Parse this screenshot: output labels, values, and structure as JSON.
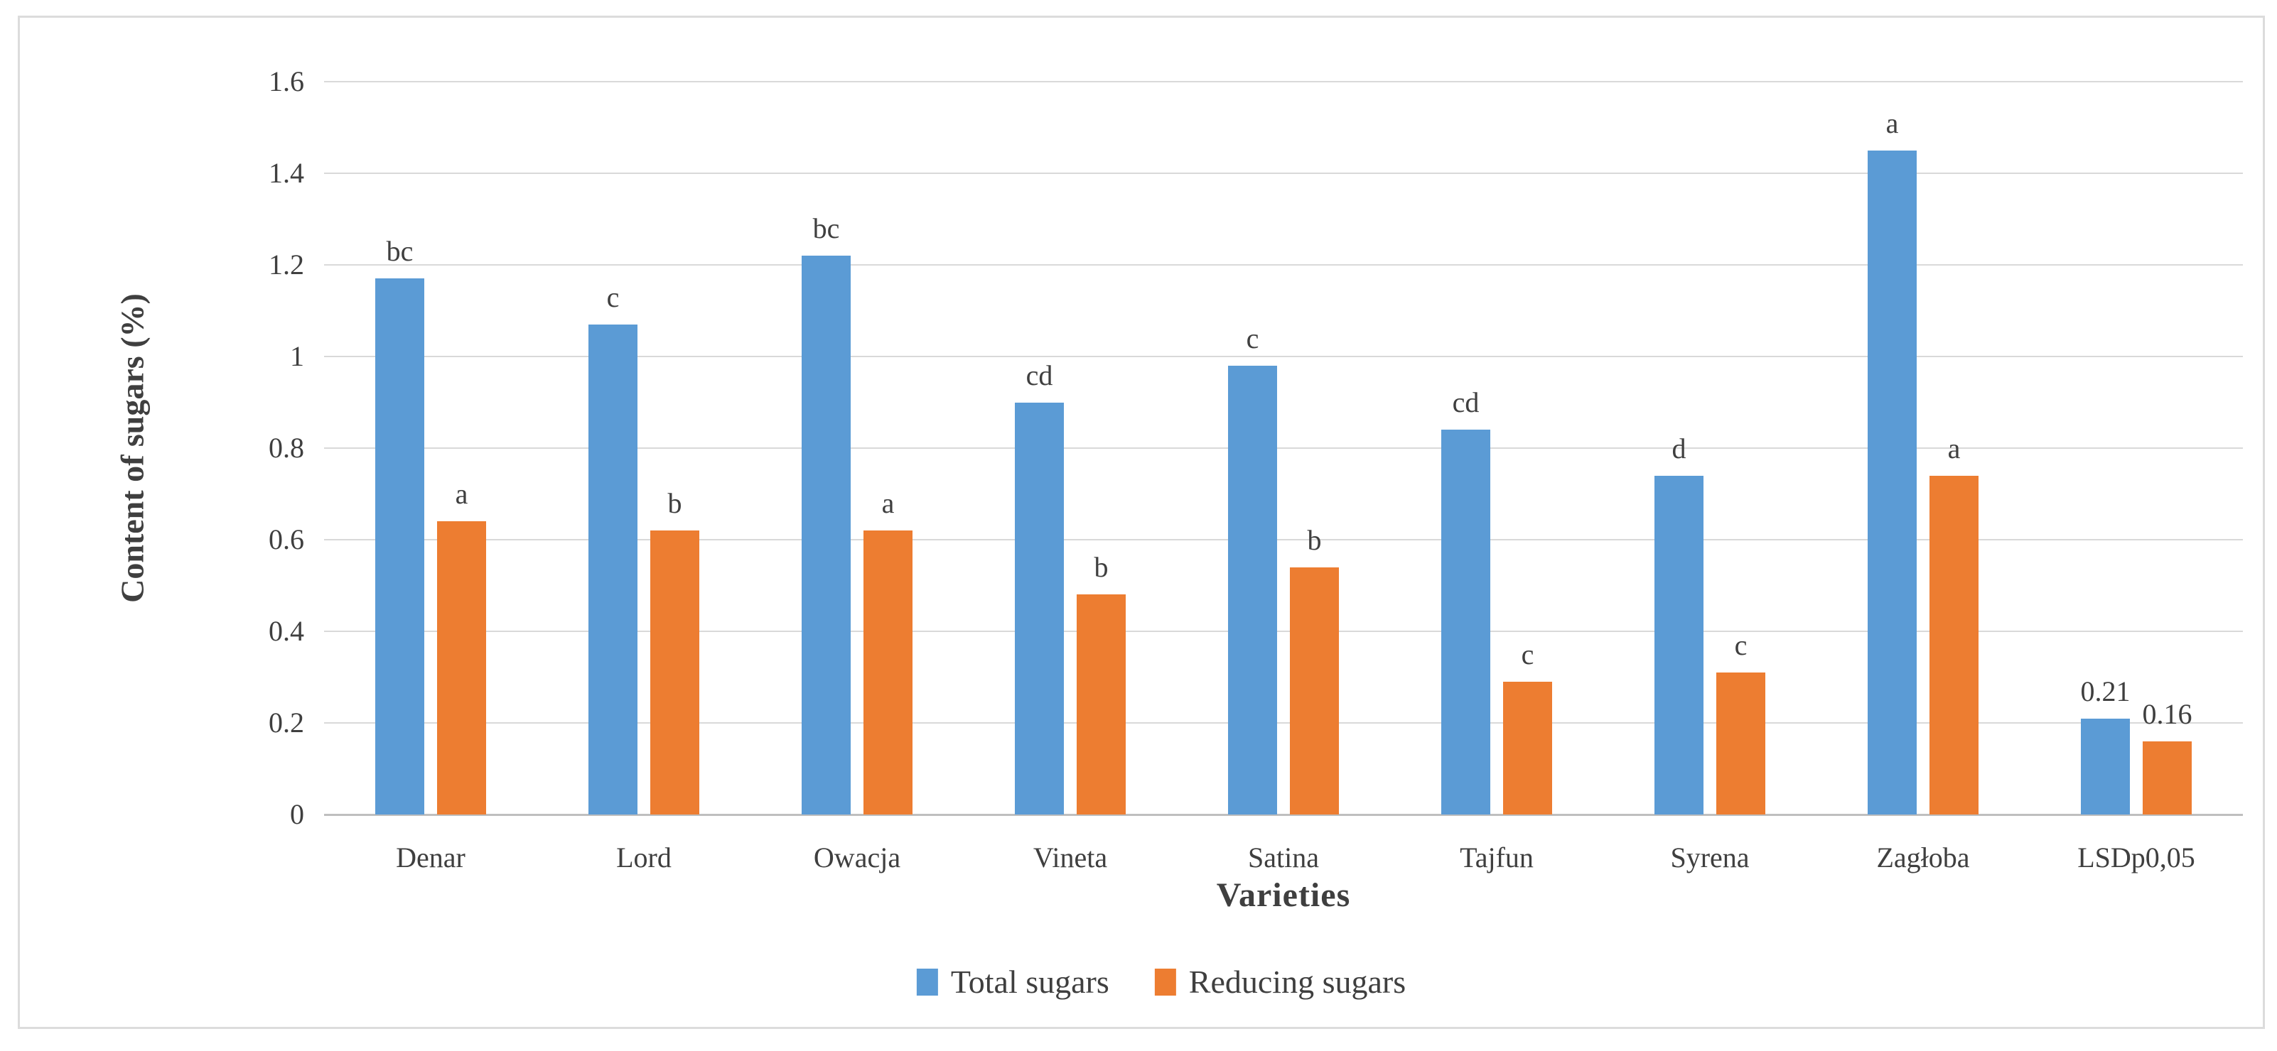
{
  "chart_data": {
    "type": "bar",
    "title": "",
    "xlabel": "Varieties",
    "ylabel": "Content of sugars (%)",
    "ylim": [
      0,
      1.6
    ],
    "y_ticks": [
      0,
      0.2,
      0.4,
      0.6,
      0.8,
      1,
      1.2,
      1.4,
      1.6
    ],
    "y_tick_labels": [
      "0",
      "0.2",
      "0.4",
      "0.6",
      "0.8",
      "1",
      "1.2",
      "1.4",
      "1.6"
    ],
    "grid": true,
    "legend_position": "bottom",
    "categories": [
      "Denar",
      "Lord",
      "Owacja",
      "Vineta",
      "Satina",
      "Tajfun",
      "Syrena",
      "Zagłoba",
      "LSDp0,05"
    ],
    "series": [
      {
        "name": "Total sugars",
        "color": "#5B9BD5",
        "values": [
          1.17,
          1.07,
          1.22,
          0.9,
          0.98,
          0.84,
          0.74,
          1.45,
          0.21
        ],
        "bar_labels": [
          "bc",
          "c",
          "bc",
          "cd",
          "c",
          "cd",
          "d",
          "a",
          "0.21"
        ]
      },
      {
        "name": "Reducing sugars",
        "color": "#ED7D31",
        "values": [
          0.64,
          0.62,
          0.62,
          0.48,
          0.54,
          0.29,
          0.31,
          0.74,
          0.16
        ],
        "bar_labels": [
          "a",
          "b",
          "a",
          "b",
          "b",
          "c",
          "c",
          "a",
          "0.16"
        ]
      }
    ],
    "colors": {
      "gridline": "#d9d9d9",
      "axis_line": "#bfbfbf",
      "text": "#3f3f3f",
      "frame_border": "#dcdcdc",
      "background": "#ffffff"
    }
  }
}
